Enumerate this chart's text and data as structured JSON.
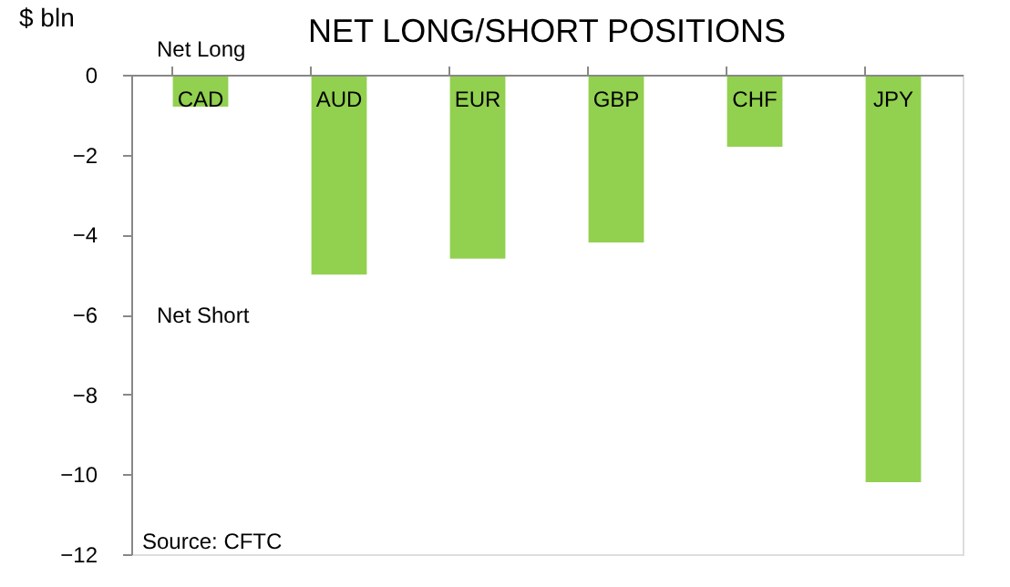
{
  "chart_data": {
    "type": "bar",
    "title": "NET LONG/SHORT POSITIONS",
    "ylabel": "$ bln",
    "categories": [
      "CAD",
      "AUD",
      "EUR",
      "GBP",
      "CHF",
      "JPY"
    ],
    "values": [
      -0.8,
      -5.0,
      -4.6,
      -4.2,
      -1.8,
      -10.2
    ],
    "color": "#92d050",
    "ylim": [
      -12,
      0
    ],
    "yticks": [
      -12,
      -10,
      -8,
      -6,
      -4,
      -2,
      0
    ],
    "grid": false,
    "annotations": [
      "Net Long",
      "Net Short",
      "Source: CFTC"
    ]
  }
}
